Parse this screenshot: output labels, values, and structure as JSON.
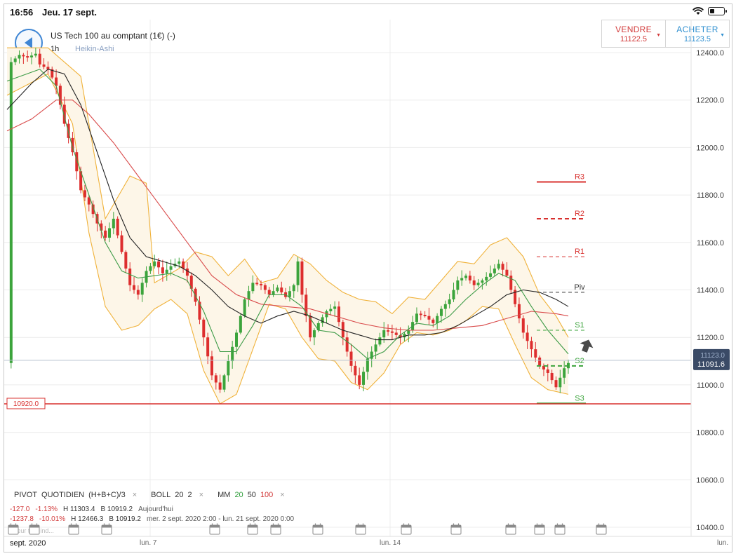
{
  "status_bar": {
    "time": "16:56",
    "date": "Jeu. 17 sept."
  },
  "header": {
    "instrument": "US Tech 100 au comptant (1€) (-)",
    "timeframe": "1h",
    "chart_type": "Heikin-Ashi"
  },
  "trade": {
    "sell_label": "VENDRE",
    "sell_price": "11122.5",
    "buy_label": "ACHETER",
    "buy_price": "11123.5"
  },
  "price_tags": {
    "current_a": "11123.0",
    "current_b": "11091.6",
    "support_line": "10920.0"
  },
  "pivot_labels": {
    "r3": "R3",
    "r2": "R2",
    "r1": "R1",
    "piv": "Piv",
    "s1": "S1",
    "s2": "S2",
    "s3": "S3"
  },
  "legend": {
    "pivot": "PIVOT",
    "pivot_mode": "QUOTIDIEN",
    "pivot_formula": "(H+B+C)/3",
    "boll": "BOLL",
    "boll_p1": "20",
    "boll_p2": "2",
    "mm": "MM",
    "mm_20": "20",
    "mm_50": "50",
    "mm_100": "100",
    "close_symbol": "×"
  },
  "stats": [
    {
      "change": "-127.0",
      "pct": "-1.13%",
      "high": "H 11303.4",
      "low": "B 10919.2",
      "period": "Aujourd'hui"
    },
    {
      "change": "-1237.8",
      "pct": "-10.01%",
      "high": "H 12466.3",
      "low": "B 10919.2",
      "period": "mer. 2 sept. 2020 2:00 - lun. 21 sept. 2020 0:00"
    }
  ],
  "ghost_text": "Valeur titre ind...",
  "x_labels": {
    "month": "sept. 2020",
    "mon7": "lun. 7",
    "mon14": "lun. 14",
    "mon21": "lun."
  },
  "colors": {
    "bull": "#3ca43c",
    "bear": "#dd2e2e",
    "boll": "#f0b23a",
    "boll_fill": "#fdf6e8",
    "ma20": "#3d9b47",
    "ma50": "#222222",
    "ma100": "#d94b4b",
    "support": "#d8312f",
    "accent_blue": "#3f86d4",
    "price_tag": "#3a4a66"
  },
  "chart_data": {
    "type": "line",
    "title": "US Tech 100 au comptant (1€) (-)",
    "interval": "1h",
    "candle_style": "Heikin-Ashi",
    "ylim": [
      10400,
      12450
    ],
    "y_ticks": [
      12400,
      12200,
      12000,
      11800,
      11600,
      11400,
      11200,
      11000,
      10800,
      10600,
      10400
    ],
    "y_tick_labels": [
      "12400.0",
      "12200.0",
      "12000.0",
      "11800.0",
      "11600.0",
      "11400.0",
      "11200.0",
      "11000.0",
      "10800.0",
      "10600.0",
      "10400.0"
    ],
    "x_labels": [
      "sept. 2020",
      "lun. 7",
      "lun. 14",
      "lun."
    ],
    "pivot_levels": {
      "R3": 11855,
      "R2": 11700,
      "R1": 11540,
      "Piv": 11390,
      "S1": 11230,
      "S2": 11080,
      "S3": 10922
    },
    "support_level": 10920.0,
    "current_price": 11091.6,
    "current_price_alt": 11123.0,
    "price_path": [
      [
        1,
        12360
      ],
      [
        3,
        12390
      ],
      [
        5,
        12380
      ],
      [
        7,
        12395
      ],
      [
        8,
        12350
      ],
      [
        10,
        12330
      ],
      [
        12,
        12260
      ],
      [
        14,
        12100
      ],
      [
        16,
        11980
      ],
      [
        18,
        11820
      ],
      [
        20,
        11760
      ],
      [
        22,
        11680
      ],
      [
        24,
        11620
      ],
      [
        26,
        11700
      ],
      [
        28,
        11560
      ],
      [
        30,
        11420
      ],
      [
        32,
        11380
      ],
      [
        34,
        11480
      ],
      [
        36,
        11520
      ],
      [
        38,
        11470
      ],
      [
        40,
        11500
      ],
      [
        42,
        11520
      ],
      [
        44,
        11460
      ],
      [
        46,
        11350
      ],
      [
        48,
        11200
      ],
      [
        50,
        11040
      ],
      [
        52,
        10980
      ],
      [
        54,
        11100
      ],
      [
        56,
        11220
      ],
      [
        58,
        11360
      ],
      [
        60,
        11430
      ],
      [
        62,
        11420
      ],
      [
        64,
        11380
      ],
      [
        66,
        11410
      ],
      [
        68,
        11370
      ],
      [
        70,
        11420
      ],
      [
        71,
        11520
      ],
      [
        72,
        11380
      ],
      [
        74,
        11200
      ],
      [
        76,
        11260
      ],
      [
        78,
        11310
      ],
      [
        80,
        11330
      ],
      [
        82,
        11200
      ],
      [
        84,
        11080
      ],
      [
        86,
        11000
      ],
      [
        88,
        11110
      ],
      [
        90,
        11170
      ],
      [
        92,
        11230
      ],
      [
        94,
        11220
      ],
      [
        96,
        11200
      ],
      [
        98,
        11230
      ],
      [
        100,
        11300
      ],
      [
        102,
        11290
      ],
      [
        104,
        11260
      ],
      [
        106,
        11320
      ],
      [
        108,
        11360
      ],
      [
        110,
        11440
      ],
      [
        112,
        11460
      ],
      [
        114,
        11420
      ],
      [
        116,
        11440
      ],
      [
        118,
        11470
      ],
      [
        120,
        11510
      ],
      [
        122,
        11460
      ],
      [
        124,
        11340
      ],
      [
        126,
        11220
      ],
      [
        128,
        11150
      ],
      [
        130,
        11080
      ],
      [
        132,
        11050
      ],
      [
        134,
        10990
      ],
      [
        136,
        11070
      ],
      [
        137,
        11092
      ]
    ],
    "bollinger": {
      "upper": [
        [
          0,
          12420
        ],
        [
          10,
          12420
        ],
        [
          18,
          12300
        ],
        [
          24,
          11700
        ],
        [
          30,
          11880
        ],
        [
          34,
          11850
        ],
        [
          36,
          11430
        ],
        [
          42,
          11490
        ],
        [
          46,
          11560
        ],
        [
          50,
          11540
        ],
        [
          54,
          11460
        ],
        [
          58,
          11530
        ],
        [
          62,
          11430
        ],
        [
          66,
          11450
        ],
        [
          70,
          11550
        ],
        [
          74,
          11510
        ],
        [
          78,
          11440
        ],
        [
          82,
          11390
        ],
        [
          86,
          11360
        ],
        [
          90,
          11350
        ],
        [
          94,
          11300
        ],
        [
          98,
          11370
        ],
        [
          102,
          11360
        ],
        [
          106,
          11440
        ],
        [
          110,
          11520
        ],
        [
          114,
          11510
        ],
        [
          118,
          11590
        ],
        [
          122,
          11620
        ],
        [
          126,
          11540
        ],
        [
          130,
          11380
        ],
        [
          134,
          11290
        ],
        [
          137,
          11200
        ]
      ],
      "lower": [
        [
          0,
          12220
        ],
        [
          10,
          12310
        ],
        [
          16,
          12100
        ],
        [
          20,
          11640
        ],
        [
          24,
          11330
        ],
        [
          28,
          11230
        ],
        [
          32,
          11250
        ],
        [
          36,
          11320
        ],
        [
          40,
          11360
        ],
        [
          44,
          11300
        ],
        [
          48,
          11060
        ],
        [
          52,
          10920
        ],
        [
          56,
          10960
        ],
        [
          60,
          11150
        ],
        [
          64,
          11340
        ],
        [
          68,
          11320
        ],
        [
          72,
          11200
        ],
        [
          76,
          11110
        ],
        [
          80,
          11100
        ],
        [
          84,
          11010
        ],
        [
          88,
          10980
        ],
        [
          92,
          11050
        ],
        [
          96,
          11170
        ],
        [
          100,
          11220
        ],
        [
          104,
          11210
        ],
        [
          108,
          11230
        ],
        [
          112,
          11270
        ],
        [
          116,
          11330
        ],
        [
          120,
          11320
        ],
        [
          124,
          11170
        ],
        [
          128,
          11030
        ],
        [
          132,
          10980
        ],
        [
          137,
          10960
        ]
      ]
    },
    "series": [
      {
        "name": "MM 20",
        "values": [
          [
            0,
            12280
          ],
          [
            8,
            12330
          ],
          [
            12,
            12260
          ],
          [
            16,
            12000
          ],
          [
            20,
            11800
          ],
          [
            24,
            11600
          ],
          [
            28,
            11480
          ],
          [
            32,
            11450
          ],
          [
            36,
            11460
          ],
          [
            40,
            11470
          ],
          [
            44,
            11440
          ],
          [
            48,
            11310
          ],
          [
            52,
            11140
          ],
          [
            56,
            11140
          ],
          [
            60,
            11250
          ],
          [
            64,
            11380
          ],
          [
            68,
            11380
          ],
          [
            72,
            11330
          ],
          [
            76,
            11230
          ],
          [
            80,
            11220
          ],
          [
            84,
            11170
          ],
          [
            88,
            11110
          ],
          [
            92,
            11140
          ],
          [
            96,
            11210
          ],
          [
            100,
            11260
          ],
          [
            104,
            11250
          ],
          [
            108,
            11290
          ],
          [
            112,
            11360
          ],
          [
            116,
            11420
          ],
          [
            120,
            11470
          ],
          [
            124,
            11440
          ],
          [
            128,
            11330
          ],
          [
            132,
            11230
          ],
          [
            137,
            11130
          ]
        ]
      },
      {
        "name": "MM 50",
        "values": [
          [
            0,
            12160
          ],
          [
            6,
            12270
          ],
          [
            10,
            12330
          ],
          [
            14,
            12310
          ],
          [
            18,
            12180
          ],
          [
            22,
            11980
          ],
          [
            26,
            11780
          ],
          [
            30,
            11620
          ],
          [
            34,
            11540
          ],
          [
            38,
            11520
          ],
          [
            42,
            11500
          ],
          [
            46,
            11460
          ],
          [
            50,
            11400
          ],
          [
            54,
            11330
          ],
          [
            58,
            11290
          ],
          [
            62,
            11260
          ],
          [
            66,
            11290
          ],
          [
            70,
            11310
          ],
          [
            74,
            11290
          ],
          [
            78,
            11260
          ],
          [
            82,
            11230
          ],
          [
            86,
            11210
          ],
          [
            90,
            11190
          ],
          [
            94,
            11190
          ],
          [
            98,
            11210
          ],
          [
            102,
            11210
          ],
          [
            106,
            11220
          ],
          [
            110,
            11250
          ],
          [
            114,
            11290
          ],
          [
            118,
            11330
          ],
          [
            122,
            11380
          ],
          [
            126,
            11400
          ],
          [
            130,
            11390
          ],
          [
            134,
            11360
          ],
          [
            137,
            11330
          ]
        ]
      },
      {
        "name": "MM 100",
        "values": [
          [
            0,
            12070
          ],
          [
            6,
            12120
          ],
          [
            12,
            12200
          ],
          [
            16,
            12200
          ],
          [
            20,
            12140
          ],
          [
            26,
            12020
          ],
          [
            32,
            11880
          ],
          [
            38,
            11740
          ],
          [
            44,
            11600
          ],
          [
            50,
            11460
          ],
          [
            56,
            11380
          ],
          [
            62,
            11340
          ],
          [
            68,
            11330
          ],
          [
            74,
            11320
          ],
          [
            80,
            11290
          ],
          [
            86,
            11260
          ],
          [
            92,
            11240
          ],
          [
            98,
            11230
          ],
          [
            104,
            11230
          ],
          [
            110,
            11240
          ],
          [
            116,
            11250
          ],
          [
            122,
            11280
          ],
          [
            128,
            11310
          ],
          [
            134,
            11300
          ],
          [
            137,
            11290
          ]
        ]
      }
    ]
  }
}
